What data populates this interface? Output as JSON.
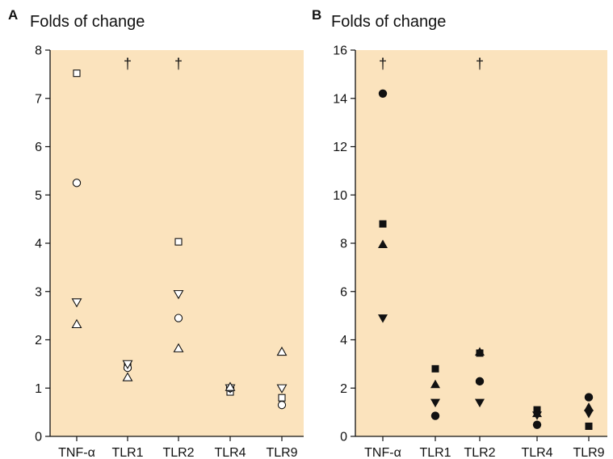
{
  "chart_data": [
    {
      "panel": "A",
      "type": "scatter",
      "ylabel": "Folds of change",
      "categories": [
        "TNF-α",
        "TLR1",
        "TLR2",
        "TLR4",
        "TLR9"
      ],
      "ylim": [
        0,
        8
      ],
      "yticks": [
        0,
        1,
        2,
        3,
        4,
        5,
        6,
        7,
        8
      ],
      "background": "#fbe3bd",
      "daggers": [
        "TLR1",
        "TLR2"
      ],
      "dagger_symbol": "†",
      "series": [
        {
          "marker": "square",
          "filled": false,
          "values": [
            7.52,
            1.45,
            4.03,
            0.92,
            0.8
          ]
        },
        {
          "marker": "circle",
          "filled": false,
          "values": [
            5.25,
            1.42,
            2.45,
            1.0,
            0.65
          ]
        },
        {
          "marker": "triangle-down",
          "filled": false,
          "values": [
            2.78,
            1.5,
            2.95,
            1.0,
            1.0
          ]
        },
        {
          "marker": "triangle-up",
          "filled": false,
          "values": [
            2.32,
            1.22,
            1.82,
            1.02,
            1.75
          ]
        }
      ]
    },
    {
      "panel": "B",
      "type": "scatter",
      "ylabel": "Folds of change",
      "categories": [
        "TNF-α",
        "TLR1",
        "TLR2",
        "TLR4",
        "TLR9"
      ],
      "ylim": [
        0,
        16
      ],
      "yticks": [
        0,
        2,
        4,
        6,
        8,
        10,
        12,
        14,
        16
      ],
      "background": "#fbe3bd",
      "daggers": [
        "TNF-α",
        "TLR2"
      ],
      "dagger_symbol": "†",
      "series": [
        {
          "marker": "circle",
          "filled": true,
          "values": [
            14.2,
            0.85,
            2.28,
            0.48,
            1.62
          ]
        },
        {
          "marker": "square",
          "filled": true,
          "values": [
            8.8,
            2.8,
            3.45,
            1.1,
            0.42
          ]
        },
        {
          "marker": "triangle-up",
          "filled": true,
          "values": [
            7.95,
            2.15,
            3.5,
            0.95,
            1.2
          ]
        },
        {
          "marker": "triangle-down",
          "filled": true,
          "values": [
            4.9,
            1.4,
            1.4,
            0.88,
            0.95
          ]
        }
      ]
    }
  ]
}
